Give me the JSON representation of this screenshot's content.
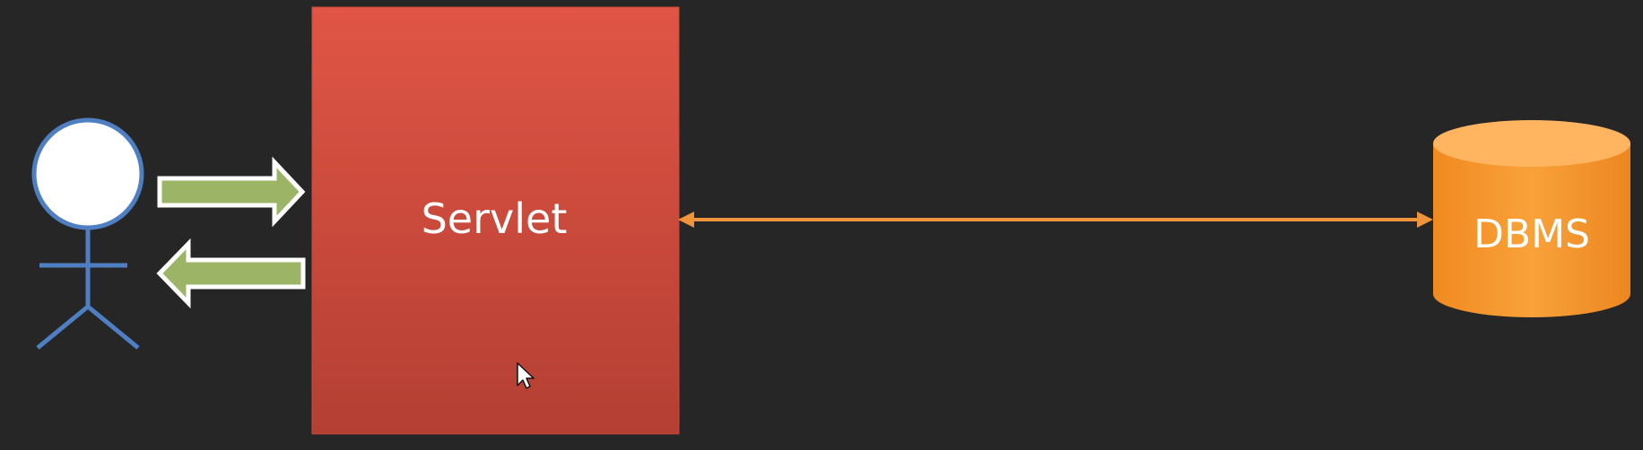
{
  "diagram": {
    "servlet_label": "Servlet",
    "dbms_label": "DBMS",
    "colors": {
      "background": "#262626",
      "servlet_top": "#e05545",
      "servlet_bottom": "#b43f33",
      "dbms_body": "#f4922a",
      "dbms_top": "#ffb55f",
      "connector": "#f0943c",
      "request_arrow": "#9bb466",
      "actor_stroke": "#4e7fc2",
      "actor_head_fill": "#ffffff"
    }
  }
}
